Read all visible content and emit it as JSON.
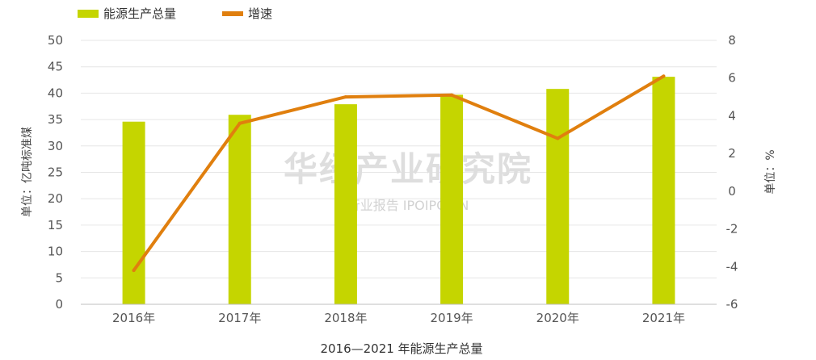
{
  "chart_data": {
    "type": "bar",
    "categories": [
      "2016年",
      "2017年",
      "2018年",
      "2019年",
      "2020年",
      "2021年"
    ],
    "series": [
      {
        "name": "能源生产总量",
        "type": "bar",
        "axis": "left",
        "color": "#c5d500",
        "values": [
          34.6,
          35.9,
          37.9,
          39.7,
          40.8,
          43.1
        ]
      },
      {
        "name": "增速",
        "type": "line",
        "axis": "right",
        "color": "#e07f0e",
        "values": [
          -4.2,
          3.6,
          5.0,
          5.1,
          2.8,
          6.1
        ]
      }
    ],
    "ylabel": "单位：亿吨标准煤",
    "y2label": "单位：%",
    "ylim": [
      0,
      50
    ],
    "y2lim": [
      -6,
      8
    ],
    "yticks": [
      "0",
      "5",
      "10",
      "15",
      "20",
      "25",
      "30",
      "35",
      "40",
      "45",
      "50"
    ],
    "y2ticks": [
      "-6",
      "-4",
      "-2",
      "0",
      "2",
      "4",
      "6",
      "8"
    ],
    "caption": "2016—2021 年能源生产总量",
    "grid": true,
    "legend": "top-left"
  },
  "watermark": {
    "brand": "华经产业研究院",
    "sub": "行业报告 IPOIPO.CN"
  }
}
